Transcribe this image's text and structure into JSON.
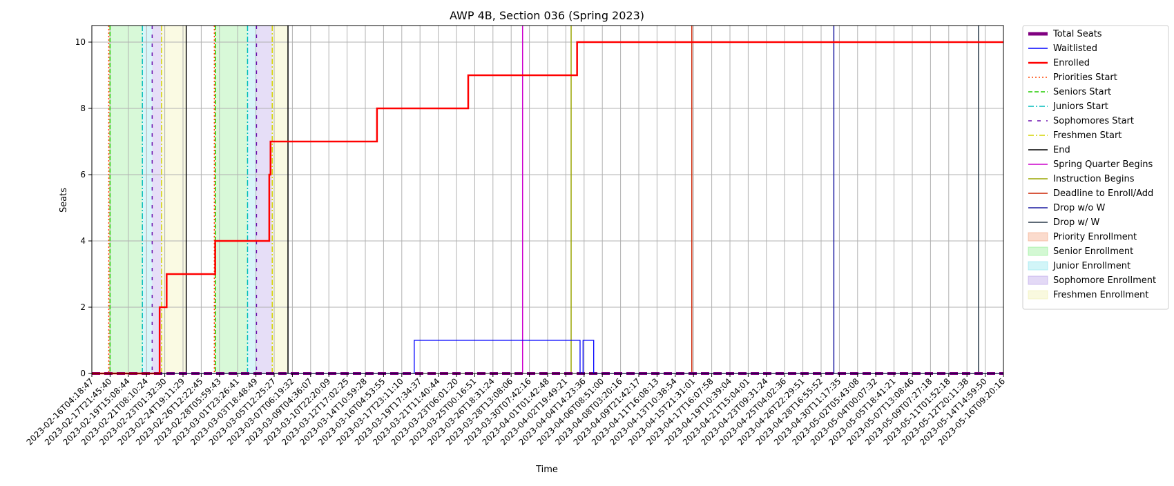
{
  "chart_data": {
    "type": "line",
    "title": "AWP 4B, Section 036 (Spring 2023)",
    "xlabel": "Time",
    "ylabel": "Seats",
    "ylim": [
      0,
      10.5
    ],
    "yticks": [
      0,
      2,
      4,
      6,
      8,
      10
    ],
    "xlim": [
      "2023-02-16 04:18:47",
      "2023-05-16 09:20:16"
    ],
    "grid": true,
    "legend_position": "outside-right",
    "xtick_labels": [
      "2023-02-16T04:18:47",
      "2023-02-17T21:45:40",
      "2023-02-19T15:08:44",
      "2023-02-21T08:10:24",
      "2023-02-23T01:32:30",
      "2023-02-24T19:11:29",
      "2023-02-26T12:22:45",
      "2023-02-28T05:59:43",
      "2023-03-01T23:26:41",
      "2023-03-03T18:48:49",
      "2023-03-05T12:25:27",
      "2023-03-07T06:19:32",
      "2023-03-09T04:36:07",
      "2023-03-10T22:20:09",
      "2023-03-12T17:02:25",
      "2023-03-14T10:59:28",
      "2023-03-16T04:53:55",
      "2023-03-17T23:11:10",
      "2023-03-19T17:34:37",
      "2023-03-21T11:40:44",
      "2023-03-23T06:01:20",
      "2023-03-25T00:16:51",
      "2023-03-26T18:31:24",
      "2023-03-28T13:08:06",
      "2023-03-30T07:42:16",
      "2023-04-01T01:42:48",
      "2023-04-02T19:49:21",
      "2023-04-04T14:23:36",
      "2023-04-06T08:51:00",
      "2023-04-08T03:20:16",
      "2023-04-09T21:42:17",
      "2023-04-11T16:08:13",
      "2023-04-13T10:38:54",
      "2023-04-15T21:31:01",
      "2023-04-17T16:07:58",
      "2023-04-19T10:39:04",
      "2023-04-21T15:04:01",
      "2023-04-23T09:31:24",
      "2023-04-25T04:02:36",
      "2023-04-26T22:29:51",
      "2023-04-28T16:55:52",
      "2023-04-30T11:17:35",
      "2023-05-02T05:43:08",
      "2023-05-04T00:07:32",
      "2023-05-05T18:41:21",
      "2023-05-07T13:08:46",
      "2023-05-09T07:27:18",
      "2023-05-11T01:52:18",
      "2023-05-12T20:11:38",
      "2023-05-14T14:59:50",
      "2023-05-16T09:20:16"
    ],
    "series": [
      {
        "name": "Total Seats",
        "color": "#800080",
        "style": "thick-dashed",
        "steps": [
          [
            "2023-02-16 04:18:47",
            0
          ],
          [
            "2023-05-16 09:20:16",
            0
          ]
        ]
      },
      {
        "name": "Waitlisted",
        "color": "#0000ff",
        "style": "solid-thin",
        "steps": [
          [
            "2023-02-16 04:18:47",
            0
          ],
          [
            "2023-03-19 17:34",
            1
          ],
          [
            "2023-04-04 23:00",
            0
          ],
          [
            "2023-04-05 06:00",
            1
          ],
          [
            "2023-04-06 07:00",
            0
          ],
          [
            "2023-05-16 09:20:16",
            0
          ]
        ]
      },
      {
        "name": "Enrolled",
        "color": "#ff0000",
        "style": "solid-thick",
        "steps": [
          [
            "2023-02-16 04:18:47",
            0
          ],
          [
            "2023-02-22 19:30",
            2
          ],
          [
            "2023-02-23 12:00",
            3
          ],
          [
            "2023-02-28 06:00",
            4
          ],
          [
            "2023-03-05 13:00",
            6
          ],
          [
            "2023-03-05 16:00",
            7
          ],
          [
            "2023-03-16 02:00",
            8
          ],
          [
            "2023-03-25 00:16",
            9
          ],
          [
            "2023-04-04 16:00",
            10
          ],
          [
            "2023-05-16 09:20:16",
            10
          ]
        ]
      }
    ],
    "vertical_markers": [
      {
        "name": "Priorities Start",
        "color": "#ff4500",
        "style": "dotted",
        "times": [
          "2023-02-17 20:00",
          "2023-02-28 04:00"
        ]
      },
      {
        "name": "Seniors Start",
        "color": "#22cc00",
        "style": "dashed",
        "times": [
          "2023-02-17 23:00",
          "2023-02-28 07:00"
        ]
      },
      {
        "name": "Juniors Start",
        "color": "#00bcbc",
        "style": "dashdot",
        "times": [
          "2023-02-21 03:00",
          "2023-03-03 10:00"
        ]
      },
      {
        "name": "Sophomores Start",
        "color": "#6a0dad",
        "style": "loosely-dashed",
        "times": [
          "2023-02-22 02:00",
          "2023-03-04 07:00"
        ]
      },
      {
        "name": "Freshmen Start",
        "color": "#d4d400",
        "style": "dashdot",
        "times": [
          "2023-02-23 00:00",
          "2023-03-05 20:00"
        ]
      },
      {
        "name": "End",
        "color": "#000000",
        "style": "solid",
        "times": [
          "2023-02-25 10:00",
          "2023-03-07 09:00"
        ]
      },
      {
        "name": "Spring Quarter Begins",
        "color": "#cc00cc",
        "style": "solid",
        "times": [
          "2023-03-30 08:00"
        ]
      },
      {
        "name": "Instruction Begins",
        "color": "#9aa500",
        "style": "solid",
        "times": [
          "2023-04-04 02:00"
        ]
      },
      {
        "name": "Deadline to Enroll/Add",
        "color": "#cc2200",
        "style": "solid",
        "times": [
          "2023-04-15 21:31"
        ]
      },
      {
        "name": "Drop w/o W",
        "color": "#1a1aa0",
        "style": "solid",
        "times": [
          "2023-04-29 19:00"
        ]
      },
      {
        "name": "Drop w/ W",
        "color": "#283848",
        "style": "solid",
        "times": [
          "2023-05-13 23:00"
        ]
      }
    ],
    "shaded_regions": [
      {
        "name": "Priority Enrollment",
        "color": "#f4a582",
        "ranges": [
          [
            "2023-02-17 20:00",
            "2023-02-17 23:00"
          ],
          [
            "2023-02-28 04:00",
            "2023-02-28 07:00"
          ]
        ]
      },
      {
        "name": "Senior Enrollment",
        "color": "#90ee90",
        "ranges": [
          [
            "2023-02-17 23:00",
            "2023-02-21 03:00"
          ],
          [
            "2023-02-28 07:00",
            "2023-03-03 10:00"
          ]
        ]
      },
      {
        "name": "Junior Enrollment",
        "color": "#8ee5ee",
        "ranges": [
          [
            "2023-02-21 03:00",
            "2023-02-22 02:00"
          ],
          [
            "2023-03-03 10:00",
            "2023-03-04 07:00"
          ]
        ]
      },
      {
        "name": "Sophomore Enrollment",
        "color": "#b8a0e8",
        "ranges": [
          [
            "2023-02-22 02:00",
            "2023-02-23 00:00"
          ],
          [
            "2023-03-04 07:00",
            "2023-03-05 20:00"
          ]
        ]
      },
      {
        "name": "Freshmen Enrollment",
        "color": "#f0f0b0",
        "ranges": [
          [
            "2023-02-23 00:00",
            "2023-02-25 10:00"
          ],
          [
            "2023-03-05 20:00",
            "2023-03-07 09:00"
          ]
        ]
      }
    ]
  }
}
